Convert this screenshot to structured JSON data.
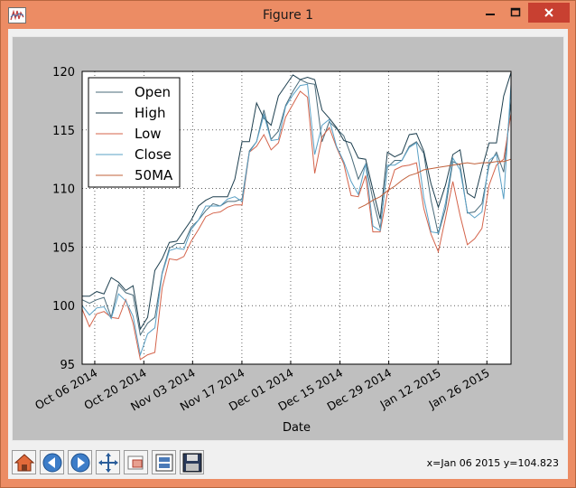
{
  "window": {
    "title": "Figure 1"
  },
  "toolbar": {
    "buttons": [
      {
        "name": "home-icon"
      },
      {
        "name": "back-icon"
      },
      {
        "name": "forward-icon"
      },
      {
        "name": "pan-icon"
      },
      {
        "name": "zoom-icon"
      },
      {
        "name": "subplots-icon"
      },
      {
        "name": "save-icon"
      }
    ],
    "coords": "x=Jan 06 2015 y=104.823"
  },
  "colors": {
    "open": "#4a6b7a",
    "high": "#1d3f4f",
    "low": "#d4634a",
    "close": "#5aa0c5",
    "ma": "#c0603a"
  },
  "chart_data": {
    "type": "line",
    "xlabel": "Date",
    "ylabel": "",
    "ylim": [
      95,
      120
    ],
    "yticks": [
      "95",
      "100",
      "105",
      "110",
      "115",
      "120"
    ],
    "xticks": [
      "Oct 06 2014",
      "Oct 20 2014",
      "Nov 03 2014",
      "Nov 17 2014",
      "Dec 01 2014",
      "Dec 15 2014",
      "Dec 29 2014",
      "Jan 12 2015",
      "Jan 26 2015"
    ],
    "grid": true,
    "legend_position": "upper-left",
    "series": [
      {
        "name": "Open",
        "values": [
          100.5,
          100.2,
          100.5,
          100.7,
          99.0,
          101.8,
          101.1,
          100.9,
          97.5,
          98.5,
          99.0,
          102.8,
          104.9,
          105.3,
          105.3,
          106.7,
          107.3,
          108.1,
          108.7,
          108.5,
          108.9,
          108.9,
          109.1,
          113.2,
          114.0,
          116.7,
          114.2,
          114.9,
          117.1,
          118.3,
          119.3,
          119.0,
          118.9,
          114.0,
          115.7,
          115.1,
          114.5,
          112.8,
          110.8,
          112.1,
          109.1,
          106.6,
          111.8,
          112.4,
          112.4,
          113.6,
          114.0,
          113.0,
          109.0,
          106.1,
          108.3,
          112.3,
          112.0,
          107.9,
          108.0,
          108.7,
          112.0,
          113.1,
          111.4,
          117.5
        ]
      },
      {
        "name": "High",
        "values": [
          100.8,
          100.8,
          101.2,
          101.0,
          102.4,
          102.0,
          101.3,
          101.7,
          98.0,
          99.0,
          103.0,
          104.0,
          105.4,
          105.5,
          106.4,
          107.3,
          108.5,
          109.0,
          109.3,
          109.3,
          109.3,
          110.8,
          114.0,
          114.0,
          117.3,
          116.0,
          115.4,
          117.9,
          118.8,
          119.7,
          119.3,
          119.5,
          119.3,
          116.7,
          116.0,
          115.2,
          114.1,
          113.9,
          112.6,
          112.5,
          109.9,
          107.4,
          113.1,
          112.7,
          113.0,
          114.6,
          114.7,
          113.2,
          110.4,
          108.4,
          110.3,
          112.9,
          113.3,
          109.6,
          109.2,
          111.7,
          113.9,
          113.9,
          117.9,
          119.9
        ]
      },
      {
        "name": "Low",
        "values": [
          99.7,
          98.2,
          99.3,
          99.5,
          99.0,
          98.9,
          100.5,
          98.5,
          95.4,
          95.8,
          96.0,
          101.5,
          104.0,
          103.9,
          104.2,
          105.5,
          106.5,
          107.6,
          107.9,
          108.0,
          108.4,
          108.6,
          108.6,
          113.1,
          113.6,
          114.6,
          113.3,
          113.9,
          116.1,
          117.2,
          118.3,
          117.8,
          111.3,
          114.4,
          115.2,
          113.5,
          112.1,
          109.4,
          109.3,
          111.1,
          106.3,
          106.3,
          109.6,
          111.6,
          111.9,
          112.0,
          112.2,
          108.3,
          106.1,
          104.6,
          107.5,
          110.6,
          107.7,
          105.2,
          105.7,
          106.6,
          110.3,
          112.0,
          112.5,
          116.4
        ]
      },
      {
        "name": "Close",
        "values": [
          100.0,
          99.2,
          99.8,
          99.9,
          98.9,
          101.0,
          100.4,
          99.1,
          95.8,
          97.6,
          98.1,
          102.7,
          104.7,
          104.9,
          104.8,
          106.5,
          107.3,
          108.5,
          108.5,
          108.5,
          109.1,
          109.3,
          108.9,
          113.1,
          114.0,
          116.3,
          114.1,
          114.2,
          117.0,
          118.0,
          118.8,
          118.9,
          112.9,
          115.4,
          115.9,
          113.6,
          112.3,
          110.6,
          109.5,
          112.1,
          106.8,
          106.4,
          112.0,
          112.0,
          112.4,
          113.5,
          113.9,
          109.2,
          106.3,
          106.2,
          108.8,
          112.6,
          111.6,
          108.0,
          107.5,
          108.0,
          112.4,
          112.9,
          109.1,
          118.9
        ]
      },
      {
        "name": "50MA",
        "values": [
          null,
          null,
          null,
          null,
          null,
          null,
          null,
          null,
          null,
          null,
          null,
          null,
          null,
          null,
          null,
          null,
          null,
          null,
          null,
          null,
          null,
          null,
          null,
          null,
          null,
          null,
          null,
          null,
          null,
          null,
          null,
          null,
          null,
          null,
          null,
          null,
          null,
          null,
          108.3,
          108.6,
          109.0,
          109.3,
          109.8,
          110.2,
          110.7,
          111.1,
          111.3,
          111.6,
          111.7,
          111.8,
          111.9,
          112.0,
          112.1,
          112.2,
          112.1,
          112.2,
          112.2,
          112.3,
          112.3,
          112.5
        ]
      }
    ]
  }
}
